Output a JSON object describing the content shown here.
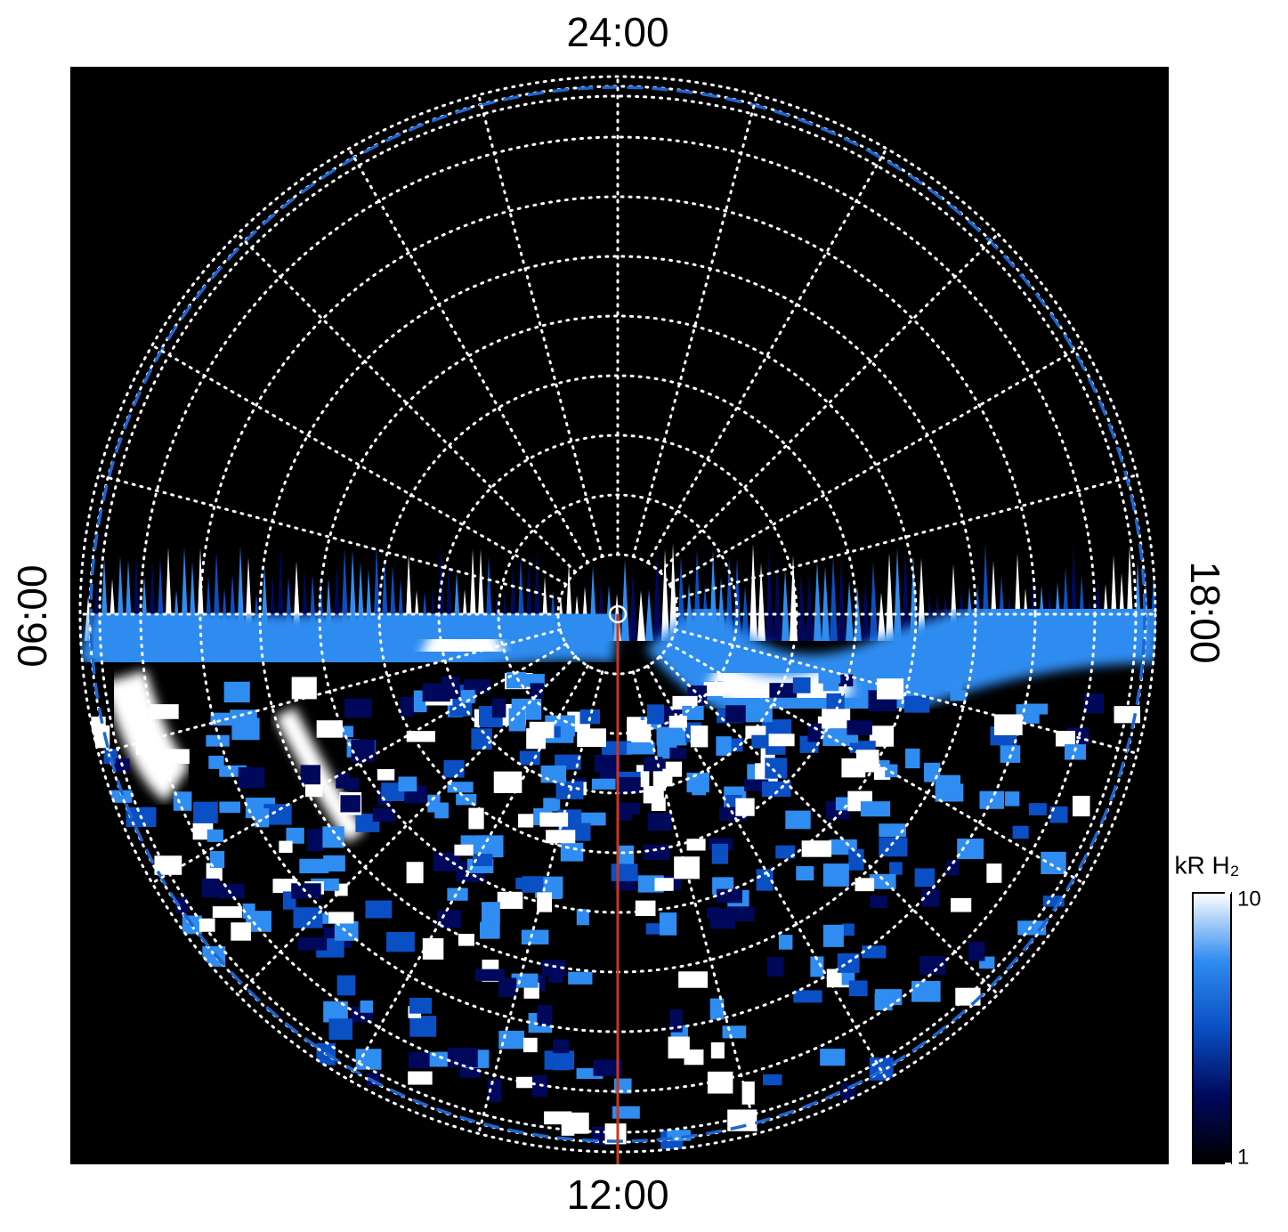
{
  "chart_data": {
    "type": "polar-image",
    "local_time_labels": [
      "24:00",
      "06:00",
      "12:00",
      "18:00"
    ],
    "colorbar": {
      "label": "kR H₂",
      "log_scale": true,
      "lim": [
        1,
        10
      ],
      "ticks": [
        1,
        10
      ],
      "colors": [
        "#000000",
        "#00085c",
        "#0a4fc4",
        "#2f8cf0",
        "#ffffff"
      ]
    }
  }
}
